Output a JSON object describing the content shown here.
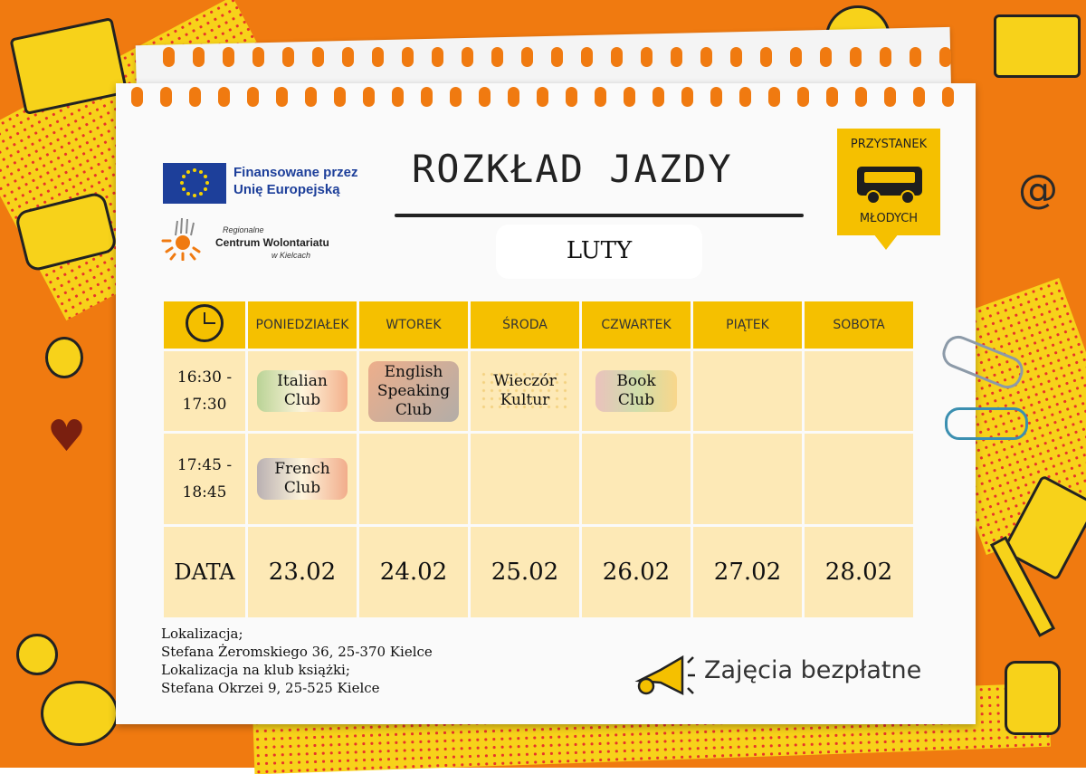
{
  "header": {
    "title": "ROZKŁAD JAZDY",
    "month": "LUTY"
  },
  "eu_logo": {
    "line1": "Finansowane przez",
    "line2": "Unię Europejską"
  },
  "rcw_logo": {
    "line1": "Regionalne",
    "line2": "Centrum Wolontariatu",
    "line3": "w Kielcach"
  },
  "badge": {
    "top": "PRZYSTANEK",
    "bottom": "MŁODYCH"
  },
  "schedule": {
    "days": [
      "PONIEDZIAŁEK",
      "WTOREK",
      "ŚRODA",
      "CZWARTEK",
      "PIĄTEK",
      "SOBOTA"
    ],
    "slots": [
      {
        "time_start": "16:30 -",
        "time_end": "17:30",
        "cells": [
          {
            "line1": "Italian",
            "line2": "Club",
            "line3": ""
          },
          {
            "line1": "English",
            "line2": "Speaking",
            "line3": "Club"
          },
          {
            "line1": "Wieczór",
            "line2": "Kultur",
            "line3": ""
          },
          {
            "line1": "Book",
            "line2": "Club",
            "line3": ""
          },
          {
            "line1": "",
            "line2": "",
            "line3": ""
          },
          {
            "line1": "",
            "line2": "",
            "line3": ""
          }
        ]
      },
      {
        "time_start": "17:45 -",
        "time_end": "18:45",
        "cells": [
          {
            "line1": "French",
            "line2": "Club",
            "line3": ""
          },
          {
            "line1": "",
            "line2": "",
            "line3": ""
          },
          {
            "line1": "",
            "line2": "",
            "line3": ""
          },
          {
            "line1": "",
            "line2": "",
            "line3": ""
          },
          {
            "line1": "",
            "line2": "",
            "line3": ""
          },
          {
            "line1": "",
            "line2": "",
            "line3": ""
          }
        ]
      }
    ],
    "date_label": "DATA",
    "dates": [
      "23.02",
      "24.02",
      "25.02",
      "26.02",
      "27.02",
      "28.02"
    ]
  },
  "location": {
    "line1": "Lokalizacja;",
    "line2": "Stefana Żeromskiego 36, 25-370 Kielce",
    "line3": "Lokalizacja na klub książki;",
    "line4": "Stefana Okrzei 9, 25-525 Kielce"
  },
  "footer": {
    "free": "Zajęcia bezpłatne"
  },
  "colors": {
    "background": "#f07a10",
    "header_cell": "#f5c000",
    "body_cell": "#fde9b6",
    "eu_blue": "#1d3f9a"
  },
  "icons": [
    "clock-icon",
    "bus-icon",
    "megaphone-icon",
    "book-icon",
    "lightbulb-icon",
    "heart-icon",
    "at-icon",
    "paperclip-icon"
  ]
}
